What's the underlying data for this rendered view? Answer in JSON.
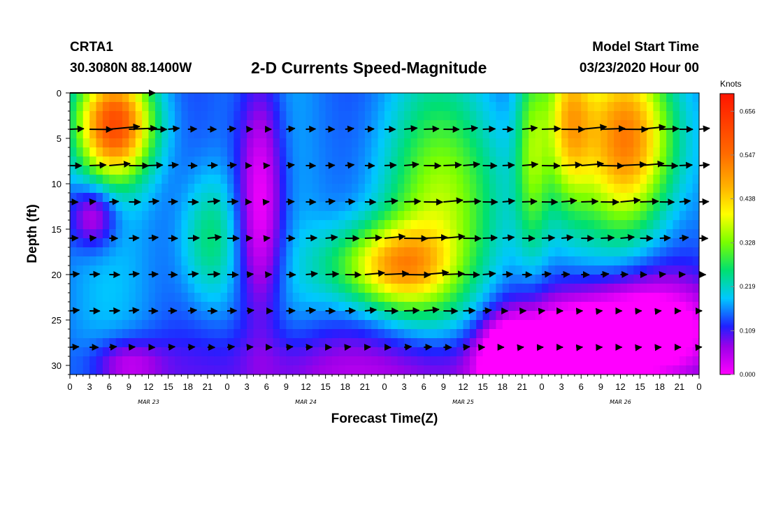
{
  "header": {
    "station": "CRTA1",
    "coords": "30.3080N 88.1400W",
    "title": "2-D Currents Speed-Magnitude",
    "model_start_label": "Model Start Time",
    "model_start_value": "03/23/2020 Hour 00"
  },
  "chart_data": {
    "type": "heatmap",
    "title": "2-D Currents Speed-Magnitude",
    "xlabel": "Forecast Time(Z)",
    "ylabel": "Depth (ft)",
    "x_hours_range": [
      0,
      96
    ],
    "x_ticks": [
      {
        "hour": 0,
        "label": "0"
      },
      {
        "hour": 3,
        "label": "3"
      },
      {
        "hour": 6,
        "label": "6"
      },
      {
        "hour": 9,
        "label": "9"
      },
      {
        "hour": 12,
        "label": "12"
      },
      {
        "hour": 15,
        "label": "15"
      },
      {
        "hour": 18,
        "label": "18"
      },
      {
        "hour": 21,
        "label": "21"
      },
      {
        "hour": 24,
        "label": "0"
      },
      {
        "hour": 27,
        "label": "3"
      },
      {
        "hour": 30,
        "label": "6"
      },
      {
        "hour": 33,
        "label": "9"
      },
      {
        "hour": 36,
        "label": "12"
      },
      {
        "hour": 39,
        "label": "15"
      },
      {
        "hour": 42,
        "label": "18"
      },
      {
        "hour": 45,
        "label": "21"
      },
      {
        "hour": 48,
        "label": "0"
      },
      {
        "hour": 51,
        "label": "3"
      },
      {
        "hour": 54,
        "label": "6"
      },
      {
        "hour": 57,
        "label": "9"
      },
      {
        "hour": 60,
        "label": "12"
      },
      {
        "hour": 63,
        "label": "15"
      },
      {
        "hour": 66,
        "label": "18"
      },
      {
        "hour": 69,
        "label": "21"
      },
      {
        "hour": 72,
        "label": "0"
      },
      {
        "hour": 75,
        "label": "3"
      },
      {
        "hour": 78,
        "label": "6"
      },
      {
        "hour": 81,
        "label": "9"
      },
      {
        "hour": 84,
        "label": "12"
      },
      {
        "hour": 87,
        "label": "15"
      },
      {
        "hour": 90,
        "label": "18"
      },
      {
        "hour": 93,
        "label": "21"
      },
      {
        "hour": 96,
        "label": "0"
      }
    ],
    "day_labels": [
      {
        "hour": 12,
        "label": "MAR 23"
      },
      {
        "hour": 36,
        "label": "MAR 24"
      },
      {
        "hour": 60,
        "label": "MAR 25"
      },
      {
        "hour": 84,
        "label": "MAR 26"
      }
    ],
    "y_range_ft": [
      0,
      31
    ],
    "y_ticks": [
      0,
      5,
      10,
      15,
      20,
      25,
      30
    ],
    "colorbar": {
      "units": "Knots",
      "range": [
        0,
        0.7
      ],
      "labels": [
        "0.656",
        "0.547",
        "0.438",
        "0.328",
        "0.219",
        "0.109",
        "0.000"
      ],
      "label_values": [
        0.656,
        0.547,
        0.438,
        0.328,
        0.219,
        0.109,
        0.0
      ],
      "colormap": [
        {
          "value": 0.0,
          "color": "#ff00ff"
        },
        {
          "value": 0.07,
          "color": "#9b00e8"
        },
        {
          "value": 0.12,
          "color": "#2020ff"
        },
        {
          "value": 0.19,
          "color": "#00c8ff"
        },
        {
          "value": 0.26,
          "color": "#00e070"
        },
        {
          "value": 0.33,
          "color": "#7aff00"
        },
        {
          "value": 0.4,
          "color": "#ffff00"
        },
        {
          "value": 0.47,
          "color": "#ffb000"
        },
        {
          "value": 0.55,
          "color": "#ff6a00"
        },
        {
          "value": 0.7,
          "color": "#ff1400"
        }
      ]
    },
    "vector_depths_ft": [
      4,
      8,
      12,
      16,
      20,
      24,
      28
    ],
    "vector_hour_spacing": 3,
    "speed_summary_knots": {
      "surface_max_mar23": 0.55,
      "mid_depth_max_mar25": 0.52,
      "surface_max_mar26": 0.55,
      "bottom_min": 0.0
    }
  }
}
